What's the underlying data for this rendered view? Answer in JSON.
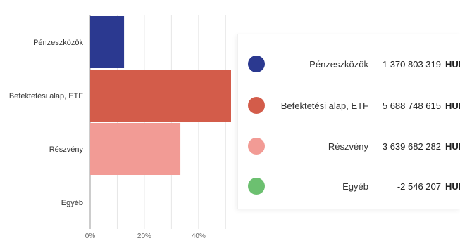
{
  "chart_data": {
    "type": "bar",
    "orientation": "horizontal",
    "categories": [
      "Pénzeszközök",
      "Befektetési alap, ETF",
      "Részvény",
      "Egyéb"
    ],
    "values": [
      12.5,
      52.0,
      33.3,
      0.0
    ],
    "colors": [
      "#2b3990",
      "#d35c4a",
      "#f29b95",
      "#6cc070"
    ],
    "xlim": [
      0,
      52
    ],
    "xticks": [
      0,
      20,
      40
    ],
    "xtick_labels": [
      "0%",
      "20%",
      "40%"
    ],
    "grid": true,
    "legend_position": "right",
    "title": "",
    "xlabel": "",
    "ylabel": ""
  },
  "legend": {
    "items": [
      {
        "name": "Pénzeszközök",
        "value": "1 370 803 319",
        "currency": "HUF",
        "color": "#2b3990"
      },
      {
        "name": "Befektetési alap, ETF",
        "value": "5 688 748 615",
        "currency": "HUF",
        "color": "#d35c4a"
      },
      {
        "name": "Részvény",
        "value": "3 639 682 282",
        "currency": "HUF",
        "color": "#f29b95"
      },
      {
        "name": "Egyéb",
        "value": "-2 546 207",
        "currency": "HUF",
        "color": "#6cc070"
      }
    ]
  }
}
